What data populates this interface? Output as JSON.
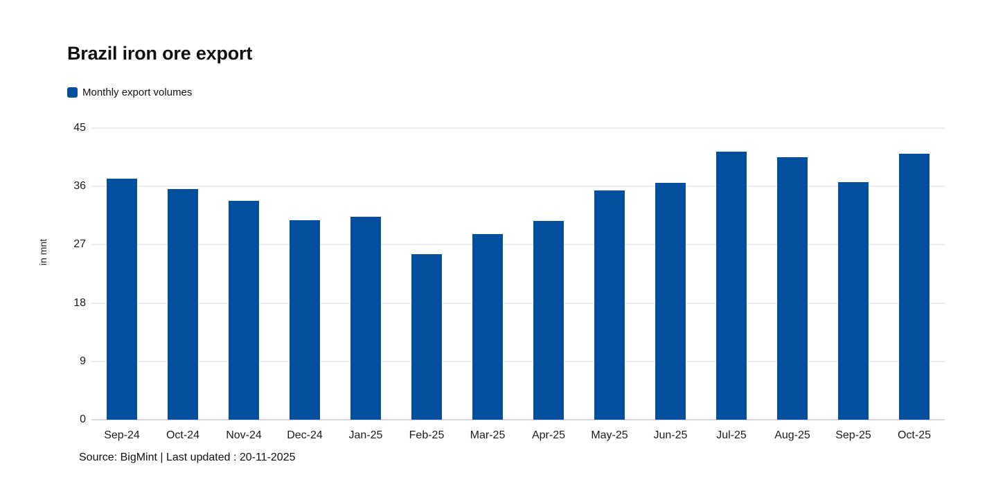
{
  "title": "Brazil iron ore export",
  "legend": {
    "label": "Monthly export volumes",
    "swatch_icon": "legend-swatch-square"
  },
  "source_note": "Source: BigMint | Last updated : 20-11-2025",
  "colors": {
    "bar": "#04509E",
    "legend_swatch": "#04509E",
    "gridline": "#eeeeee",
    "baseline": "#d9d9d9",
    "text": "#111111"
  },
  "y_axis": {
    "label": "in mnt",
    "ticks": [
      0,
      9,
      18,
      27,
      36,
      45
    ]
  },
  "chart_data": {
    "type": "bar",
    "title": "Brazil iron ore export",
    "categories": [
      "Sep-24",
      "Oct-24",
      "Nov-24",
      "Dec-24",
      "Jan-25",
      "Feb-25",
      "Mar-25",
      "Apr-25",
      "May-25",
      "Jun-25",
      "Jul-25",
      "Aug-25",
      "Sep-25",
      "Oct-25"
    ],
    "values": [
      37.2,
      35.6,
      33.8,
      30.8,
      31.3,
      25.6,
      28.6,
      30.7,
      35.4,
      36.6,
      41.4,
      40.5,
      36.7,
      41.0
    ],
    "series": [
      {
        "name": "Monthly export volumes",
        "values": [
          37.2,
          35.6,
          33.8,
          30.8,
          31.3,
          25.6,
          28.6,
          30.7,
          35.4,
          36.6,
          41.4,
          40.5,
          36.7,
          41.0
        ]
      }
    ],
    "xlabel": "",
    "ylabel": "in mnt",
    "ylim": [
      0,
      45
    ],
    "yticks": [
      0,
      9,
      18,
      27,
      36,
      45
    ],
    "grid": true,
    "legend_position": "top-left",
    "bar_color": "#04509E"
  }
}
